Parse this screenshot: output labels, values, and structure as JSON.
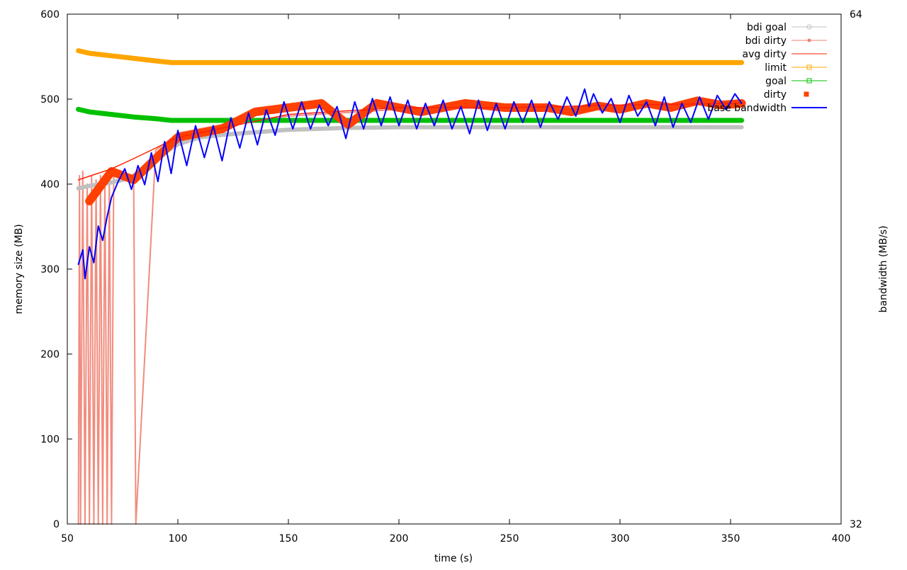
{
  "chart_data": {
    "type": "line",
    "title": "",
    "xlabel": "time (s)",
    "ylabel": "memory size (MB)",
    "y2label": "bandwidth (MB/s)",
    "xlim": [
      50,
      400
    ],
    "ylim": [
      0,
      600
    ],
    "y2lim": [
      32,
      64
    ],
    "x_ticks": [
      50,
      100,
      150,
      200,
      250,
      300,
      350,
      400
    ],
    "y_ticks": [
      0,
      100,
      200,
      300,
      400,
      500,
      600
    ],
    "y2_ticks": [
      32,
      64
    ],
    "grid": false,
    "legend_position": "top-right",
    "colors": {
      "bdi_goal": "#c0c0c0",
      "bdi_dirty": "#f08070",
      "avg_dirty": "#ff2000",
      "limit": "#ffa500",
      "goal": "#00c000",
      "dirty": "#ff4000",
      "base_bandwidth": "#0000ff"
    },
    "series": [
      {
        "key": "bdi_goal",
        "name": "bdi goal",
        "x": [
          55,
          60,
          65,
          70,
          75,
          80,
          90,
          100,
          110,
          120,
          130,
          140,
          150,
          175,
          200,
          250,
          300,
          355
        ],
        "values": [
          395,
          398,
          400,
          402,
          405,
          410,
          430,
          447,
          455,
          458,
          460,
          462,
          464,
          466,
          467,
          467,
          467,
          467
        ]
      },
      {
        "key": "bdi_dirty",
        "name": "bdi dirty",
        "x": [
          55,
          55.5,
          56,
          57,
          58,
          59,
          60,
          61,
          62,
          63,
          64,
          65,
          66,
          67,
          68,
          69,
          70,
          71,
          80,
          81,
          90,
          100,
          120,
          150,
          200,
          250,
          300,
          355
        ],
        "values": [
          0,
          410,
          0,
          415,
          0,
          400,
          0,
          410,
          0,
          405,
          0,
          410,
          0,
          405,
          0,
          410,
          0,
          410,
          410,
          0,
          440,
          460,
          470,
          480,
          488,
          490,
          492,
          495
        ]
      },
      {
        "key": "avg_dirty",
        "name": "avg dirty",
        "x": [
          55,
          70,
          80,
          100,
          150,
          200,
          250,
          300,
          355
        ],
        "values": [
          405,
          418,
          430,
          455,
          482,
          490,
          490,
          493,
          495
        ]
      },
      {
        "key": "limit",
        "name": "limit",
        "x": [
          55,
          60,
          70,
          80,
          90,
          97,
          100,
          150,
          200,
          250,
          300,
          355
        ],
        "values": [
          557,
          554,
          551,
          548,
          545,
          543,
          543,
          543,
          543,
          543,
          543,
          543
        ]
      },
      {
        "key": "goal",
        "name": "goal",
        "x": [
          55,
          60,
          70,
          80,
          90,
          97,
          100,
          150,
          200,
          250,
          300,
          355
        ],
        "values": [
          488,
          485,
          482,
          479,
          477,
          475,
          475,
          475,
          475,
          475,
          475,
          475
        ]
      },
      {
        "key": "dirty",
        "name": "dirty",
        "x": [
          60,
          70,
          80,
          100,
          120,
          135,
          150,
          165,
          177,
          190,
          210,
          230,
          248,
          267,
          278,
          290,
          300,
          312,
          323,
          335,
          346,
          355
        ],
        "values": [
          380,
          415,
          405,
          455,
          465,
          485,
          490,
          495,
          470,
          495,
          485,
          495,
          490,
          490,
          485,
          492,
          488,
          495,
          490,
          498,
          493,
          495
        ]
      },
      {
        "key": "base_bandwidth",
        "name": "base bandwidth",
        "axis": "y2",
        "x": [
          55,
          57,
          58,
          60,
          62,
          64,
          66,
          68,
          70,
          73,
          76,
          79,
          82,
          85,
          88,
          91,
          94,
          97,
          100,
          104,
          108,
          112,
          116,
          120,
          124,
          128,
          132,
          136,
          140,
          144,
          148,
          152,
          156,
          160,
          164,
          168,
          172,
          176,
          180,
          184,
          188,
          192,
          196,
          200,
          204,
          208,
          212,
          216,
          220,
          224,
          228,
          232,
          236,
          240,
          244,
          248,
          252,
          256,
          260,
          264,
          268,
          272,
          276,
          280,
          284,
          286,
          288,
          292,
          296,
          300,
          304,
          308,
          312,
          316,
          320,
          324,
          328,
          332,
          336,
          340,
          344,
          348,
          352,
          355
        ],
        "values": [
          48.3,
          49.2,
          47.4,
          49.4,
          48.4,
          50.7,
          49.8,
          51.3,
          52.5,
          53.5,
          54.3,
          53.0,
          54.5,
          53.3,
          55.3,
          53.5,
          56.0,
          54.0,
          56.7,
          54.5,
          57.0,
          55.0,
          57.0,
          54.8,
          57.5,
          55.6,
          57.8,
          55.8,
          58.0,
          56.4,
          58.5,
          56.8,
          58.5,
          56.8,
          58.3,
          57.0,
          58.2,
          56.2,
          58.5,
          56.8,
          58.7,
          57.0,
          58.8,
          57.0,
          58.6,
          56.8,
          58.4,
          57.0,
          58.6,
          56.8,
          58.2,
          56.5,
          58.6,
          56.7,
          58.4,
          56.8,
          58.5,
          57.2,
          58.6,
          56.9,
          58.5,
          57.4,
          58.8,
          57.6,
          59.3,
          58.2,
          59.0,
          57.8,
          58.7,
          57.2,
          58.9,
          57.6,
          58.5,
          57.0,
          58.8,
          56.9,
          58.4,
          57.2,
          58.8,
          57.4,
          58.9,
          58.0,
          59.0,
          58.4
        ]
      }
    ]
  }
}
